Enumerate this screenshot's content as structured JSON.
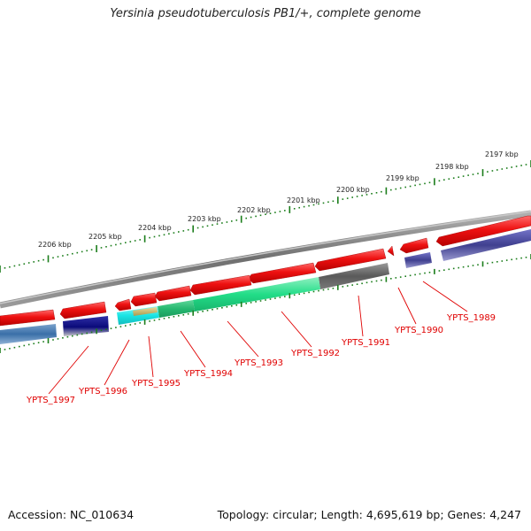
{
  "title": "Yersinia pseudotuberculosis PB1/+, complete genome",
  "footer": {
    "accession": "Accession: NC_010634",
    "stats": "Topology: circular; Length: 4,695,619 bp; Genes: 4,247"
  },
  "colors": {
    "backbone": "#7a7a7a",
    "cds_red": "#ee1111",
    "ruler_tick": "#1b7d1b",
    "label_red": "#e00000",
    "blue_lane": "#3f3f8f",
    "steel_blue": "#3a6fa8",
    "cyan": "#19e5e5",
    "green": "#22dd88",
    "mid_green": "#33cc77",
    "gray_feature": "#5a5a5a",
    "navy": "#0a0a7a"
  },
  "scale": {
    "unit": "kbp",
    "labels": [
      "2206 kbp",
      "2205 kbp",
      "2204 kbp",
      "2203 kbp",
      "2202 kbp",
      "2201 kbp",
      "2200 kbp",
      "2199 kbp",
      "2198 kbp",
      "2197 kbp"
    ]
  },
  "genes": [
    {
      "locus": "YPTS_1997"
    },
    {
      "locus": "YPTS_1996"
    },
    {
      "locus": "YPTS_1995"
    },
    {
      "locus": "YPTS_1994"
    },
    {
      "locus": "YPTS_1993"
    },
    {
      "locus": "YPTS_1992"
    },
    {
      "locus": "YPTS_1991"
    },
    {
      "locus": "YPTS_1990"
    },
    {
      "locus": "YPTS_1989"
    }
  ]
}
